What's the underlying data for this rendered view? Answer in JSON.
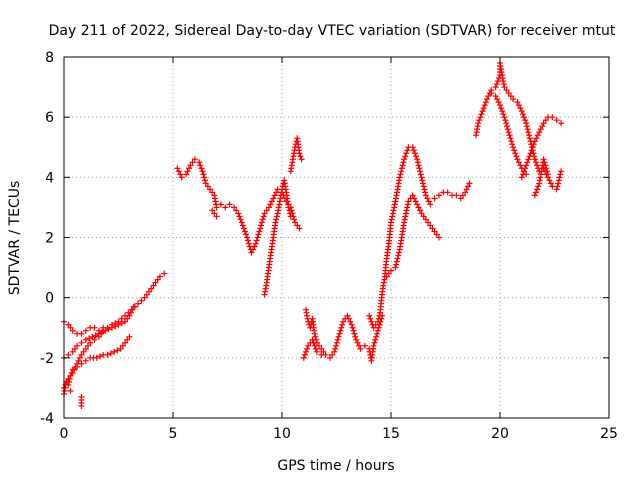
{
  "chart_data": {
    "type": "scatter",
    "title": "Day 211 of 2022, Sidereal Day-to-day VTEC variation (SDTVAR) for receiver mtut",
    "xlabel": "GPS time / hours",
    "ylabel": "SDTVAR / TECUs",
    "xlim": [
      0,
      25
    ],
    "ylim": [
      -4,
      8
    ],
    "xticks": [
      "0",
      "5",
      "10",
      "15",
      "20",
      "25"
    ],
    "yticks": [
      "-4",
      "-2",
      "0",
      "2",
      "4",
      "6",
      "8"
    ],
    "grid": true,
    "marker": "+",
    "color": "#ff0000",
    "series": [
      {
        "points": [
          [
            0.0,
            -3.2
          ],
          [
            0.1,
            -2.8
          ],
          [
            0.2,
            -2.9
          ],
          [
            0.3,
            -2.6
          ],
          [
            0.4,
            -2.4
          ],
          [
            0.6,
            -2.3
          ],
          [
            0.8,
            -2.2
          ],
          [
            1.0,
            -2.1
          ],
          [
            1.2,
            -2.0
          ],
          [
            1.5,
            -2.0
          ],
          [
            1.8,
            -1.9
          ],
          [
            2.0,
            -1.9
          ],
          [
            2.3,
            -1.8
          ],
          [
            2.6,
            -1.7
          ],
          [
            2.8,
            -1.5
          ],
          [
            3.0,
            -1.3
          ],
          [
            0.0,
            -2.0
          ],
          [
            0.2,
            -1.9
          ],
          [
            0.4,
            -1.8
          ],
          [
            0.6,
            -1.6
          ],
          [
            0.8,
            -1.5
          ],
          [
            1.0,
            -1.4
          ],
          [
            1.3,
            -1.3
          ],
          [
            1.6,
            -1.2
          ],
          [
            1.9,
            -1.1
          ],
          [
            2.2,
            -1.0
          ],
          [
            2.5,
            -0.9
          ],
          [
            2.8,
            -0.8
          ],
          [
            3.0,
            -0.6
          ],
          [
            3.2,
            -0.3
          ],
          [
            0.0,
            -0.8
          ],
          [
            0.2,
            -0.9
          ],
          [
            0.4,
            -1.1
          ],
          [
            0.6,
            -1.2
          ],
          [
            0.8,
            -1.2
          ],
          [
            1.0,
            -1.1
          ],
          [
            1.2,
            -1.0
          ],
          [
            1.4,
            -1.0
          ],
          [
            1.6,
            -1.1
          ],
          [
            1.8,
            -1.0
          ],
          [
            0.0,
            -3.0
          ],
          [
            0.2,
            -2.7
          ],
          [
            0.4,
            -2.5
          ],
          [
            0.6,
            -2.2
          ],
          [
            0.8,
            -1.9
          ],
          [
            1.0,
            -1.7
          ],
          [
            1.2,
            -1.5
          ],
          [
            1.4,
            -1.4
          ],
          [
            1.6,
            -1.3
          ],
          [
            1.8,
            -1.1
          ],
          [
            2.0,
            -1.0
          ],
          [
            2.2,
            -0.9
          ],
          [
            2.5,
            -0.8
          ],
          [
            2.8,
            -0.6
          ],
          [
            3.1,
            -0.4
          ],
          [
            3.4,
            -0.2
          ],
          [
            3.7,
            0.0
          ],
          [
            4.0,
            0.3
          ],
          [
            4.2,
            0.5
          ],
          [
            4.4,
            0.7
          ],
          [
            4.6,
            0.8
          ],
          [
            0.8,
            -3.6
          ],
          [
            0.8,
            -3.3
          ],
          [
            0.3,
            -3.1
          ],
          [
            5.2,
            4.3
          ],
          [
            5.4,
            4.0
          ],
          [
            5.6,
            4.1
          ],
          [
            5.8,
            4.4
          ],
          [
            6.0,
            4.6
          ],
          [
            6.2,
            4.5
          ],
          [
            6.4,
            4.1
          ],
          [
            6.5,
            3.8
          ],
          [
            6.7,
            3.6
          ],
          [
            6.9,
            3.4
          ],
          [
            7.0,
            3.0
          ],
          [
            7.2,
            3.1
          ],
          [
            7.4,
            3.0
          ],
          [
            7.6,
            3.1
          ],
          [
            7.8,
            3.0
          ],
          [
            8.0,
            2.8
          ],
          [
            8.2,
            2.4
          ],
          [
            8.4,
            2.0
          ],
          [
            8.6,
            1.5
          ],
          [
            8.8,
            1.8
          ],
          [
            9.0,
            2.3
          ],
          [
            9.2,
            2.8
          ],
          [
            9.4,
            3.0
          ],
          [
            9.6,
            3.3
          ],
          [
            9.8,
            3.6
          ],
          [
            10.0,
            3.5
          ],
          [
            10.2,
            3.2
          ],
          [
            10.4,
            3.0
          ],
          [
            10.6,
            2.5
          ],
          [
            10.8,
            2.3
          ],
          [
            6.8,
            2.9
          ],
          [
            6.9,
            2.8
          ],
          [
            7.0,
            2.7
          ],
          [
            9.2,
            0.1
          ],
          [
            9.3,
            0.5
          ],
          [
            9.4,
            1.0
          ],
          [
            9.5,
            1.5
          ],
          [
            9.6,
            2.0
          ],
          [
            9.7,
            2.5
          ],
          [
            9.8,
            2.8
          ],
          [
            9.9,
            3.2
          ],
          [
            10.0,
            3.6
          ],
          [
            10.1,
            3.9
          ],
          [
            10.2,
            3.5
          ],
          [
            10.3,
            3.0
          ],
          [
            10.4,
            2.7
          ],
          [
            10.4,
            4.2
          ],
          [
            10.5,
            4.6
          ],
          [
            10.6,
            5.0
          ],
          [
            10.7,
            5.3
          ],
          [
            10.8,
            4.8
          ],
          [
            10.9,
            4.6
          ],
          [
            11.1,
            -0.4
          ],
          [
            11.2,
            -0.8
          ],
          [
            11.3,
            -1.0
          ],
          [
            11.4,
            -0.7
          ],
          [
            11.5,
            -1.2
          ],
          [
            11.6,
            -1.5
          ],
          [
            11.8,
            -1.7
          ],
          [
            12.0,
            -1.9
          ],
          [
            12.2,
            -2.0
          ],
          [
            12.4,
            -1.8
          ],
          [
            12.6,
            -1.3
          ],
          [
            12.8,
            -0.8
          ],
          [
            13.0,
            -0.6
          ],
          [
            13.2,
            -0.9
          ],
          [
            13.4,
            -1.4
          ],
          [
            13.6,
            -1.7
          ],
          [
            13.8,
            -1.6
          ],
          [
            14.0,
            -1.7
          ],
          [
            14.1,
            -2.1
          ],
          [
            14.2,
            -1.6
          ],
          [
            14.4,
            -1.1
          ],
          [
            14.6,
            -0.6
          ],
          [
            11.0,
            -2.0
          ],
          [
            11.2,
            -1.6
          ],
          [
            11.4,
            -1.4
          ],
          [
            11.6,
            -1.8
          ],
          [
            11.8,
            -1.9
          ],
          [
            14.0,
            -0.6
          ],
          [
            14.2,
            -1.0
          ],
          [
            14.4,
            -0.8
          ],
          [
            14.5,
            -0.5
          ],
          [
            14.6,
            0.2
          ],
          [
            14.7,
            0.6
          ],
          [
            14.8,
            1.3
          ],
          [
            14.9,
            1.8
          ],
          [
            15.0,
            2.5
          ],
          [
            15.2,
            3.2
          ],
          [
            15.4,
            4.0
          ],
          [
            15.6,
            4.6
          ],
          [
            15.8,
            5.0
          ],
          [
            16.0,
            5.0
          ],
          [
            16.2,
            4.6
          ],
          [
            16.4,
            4.0
          ],
          [
            16.6,
            3.4
          ],
          [
            16.8,
            3.1
          ],
          [
            14.8,
            0.7
          ],
          [
            15.0,
            0.9
          ],
          [
            15.2,
            1.0
          ],
          [
            15.4,
            1.6
          ],
          [
            15.6,
            2.5
          ],
          [
            15.8,
            3.2
          ],
          [
            16.0,
            3.4
          ],
          [
            16.2,
            3.1
          ],
          [
            16.4,
            2.8
          ],
          [
            16.6,
            2.6
          ],
          [
            16.8,
            2.4
          ],
          [
            17.0,
            2.2
          ],
          [
            17.2,
            2.0
          ],
          [
            17.0,
            3.3
          ],
          [
            17.2,
            3.4
          ],
          [
            17.4,
            3.5
          ],
          [
            17.6,
            3.5
          ],
          [
            17.8,
            3.4
          ],
          [
            18.0,
            3.4
          ],
          [
            18.2,
            3.3
          ],
          [
            18.4,
            3.5
          ],
          [
            18.6,
            3.8
          ],
          [
            18.9,
            5.4
          ],
          [
            19.0,
            5.8
          ],
          [
            19.2,
            6.2
          ],
          [
            19.4,
            6.6
          ],
          [
            19.6,
            6.9
          ],
          [
            19.8,
            7.0
          ],
          [
            20.0,
            7.4
          ],
          [
            20.0,
            7.8
          ],
          [
            20.2,
            7.0
          ],
          [
            20.4,
            6.8
          ],
          [
            20.6,
            6.6
          ],
          [
            20.8,
            6.5
          ],
          [
            21.0,
            6.2
          ],
          [
            21.2,
            5.8
          ],
          [
            21.4,
            5.2
          ],
          [
            21.6,
            4.6
          ],
          [
            21.8,
            4.2
          ],
          [
            22.0,
            4.3
          ],
          [
            22.2,
            4.0
          ],
          [
            22.4,
            3.7
          ],
          [
            22.6,
            3.6
          ],
          [
            22.8,
            4.2
          ],
          [
            19.6,
            6.8
          ],
          [
            19.8,
            6.7
          ],
          [
            20.0,
            6.4
          ],
          [
            20.2,
            6.0
          ],
          [
            20.4,
            5.5
          ],
          [
            20.6,
            5.0
          ],
          [
            20.8,
            4.6
          ],
          [
            21.0,
            4.3
          ],
          [
            21.2,
            4.1
          ],
          [
            21.0,
            4.0
          ],
          [
            21.2,
            4.4
          ],
          [
            21.4,
            4.8
          ],
          [
            21.6,
            5.2
          ],
          [
            21.8,
            5.5
          ],
          [
            22.0,
            5.8
          ],
          [
            22.2,
            6.0
          ],
          [
            22.4,
            6.0
          ],
          [
            22.6,
            5.9
          ],
          [
            22.8,
            5.8
          ],
          [
            21.6,
            3.4
          ],
          [
            21.8,
            3.8
          ],
          [
            22.0,
            4.6
          ],
          [
            22.2,
            4.1
          ]
        ]
      }
    ]
  }
}
